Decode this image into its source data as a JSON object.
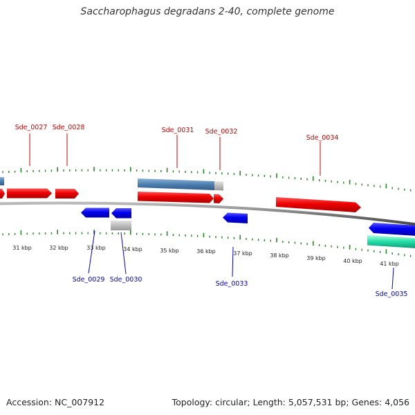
{
  "title": "Saccharophagus degradans 2-40, complete genome",
  "footer": {
    "accession": "Accession: NC_007912",
    "summary": "Topology: circular; Length: 5,057,531 bp; Genes: 4,056"
  },
  "colors": {
    "forward_cds": "#ee1111",
    "reverse_cds": "#1111dd",
    "rna": "#5588bb",
    "other": "#bbbbbb",
    "highlight": "#22ddaa",
    "tick": "#228822",
    "backbone": "#777777",
    "label_top": "#cc0000",
    "label_bottom": "#0000cc"
  },
  "scale_labels": [
    "31 kbp",
    "32 kbp",
    "33 kbp",
    "34 kbp",
    "35 kbp",
    "36 kbp",
    "37 kbp",
    "38 kbp",
    "39 kbp",
    "40 kbp",
    "41 kbp"
  ],
  "top_labels": [
    "Sde_0027",
    "Sde_0028",
    "Sde_0031",
    "Sde_0032",
    "Sde_0034"
  ],
  "bottom_labels": [
    "Sde_0029",
    "Sde_0030",
    "Sde_0033",
    "Sde_0035"
  ]
}
